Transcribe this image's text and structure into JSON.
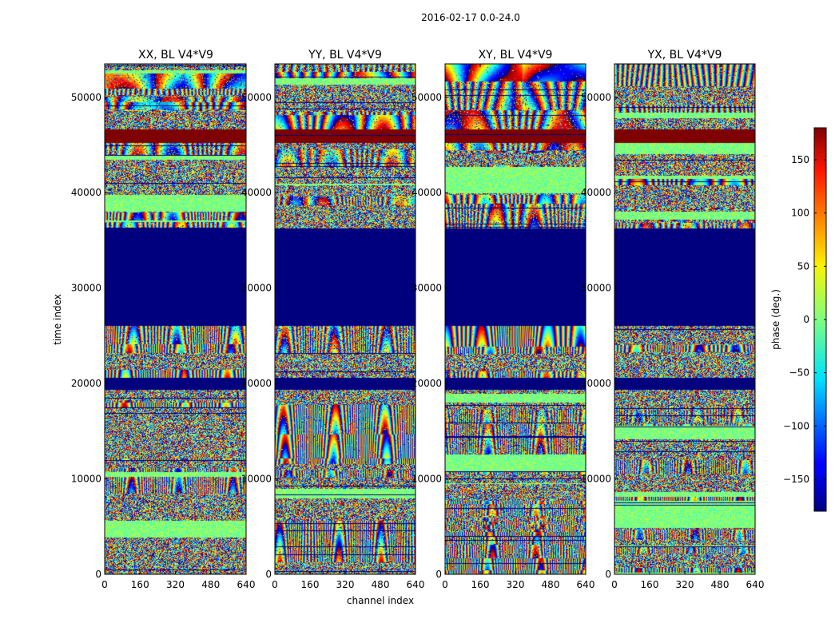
{
  "figure": {
    "suptitle": "2016-02-17 0.0-24.0",
    "xlabel": "channel index",
    "ylabel": "time index",
    "colorbar_label": "phase (deg.)"
  },
  "chart_data": {
    "type": "heatmap",
    "colormap": "jet",
    "vmin": -180,
    "vmax": 180,
    "x_range": [
      0,
      640
    ],
    "y_range": [
      0,
      53500
    ],
    "x_ticks": [
      0,
      160,
      320,
      480,
      640
    ],
    "x_tick_labels": [
      "0",
      "160",
      "320",
      "480",
      "640"
    ],
    "y_ticks": [
      0,
      10000,
      20000,
      30000,
      40000,
      50000
    ],
    "y_tick_labels": [
      "0",
      "10000",
      "20000",
      "30000",
      "40000",
      "50000"
    ],
    "colorbar_ticks": [
      -150,
      -100,
      -50,
      0,
      50,
      100,
      150
    ],
    "colorbar_tick_labels": [
      "−150",
      "−100",
      "−50",
      "0",
      "50",
      "100",
      "150"
    ],
    "panels": [
      {
        "title": "XX, BL V4*V9"
      },
      {
        "title": "YY, BL V4*V9"
      },
      {
        "title": "XY, BL V4*V9"
      },
      {
        "title": "YX, BL V4*V9"
      }
    ],
    "constant_bands": [
      {
        "t_start": 26000,
        "t_end": 36300,
        "phase": -180
      },
      {
        "t_start": 19300,
        "t_end": 20600,
        "phase": -180
      },
      {
        "t_start": 45200,
        "t_end": 46700,
        "phase": 180
      }
    ]
  },
  "colors": {
    "frame": "#000000",
    "background": "#ffffff"
  }
}
